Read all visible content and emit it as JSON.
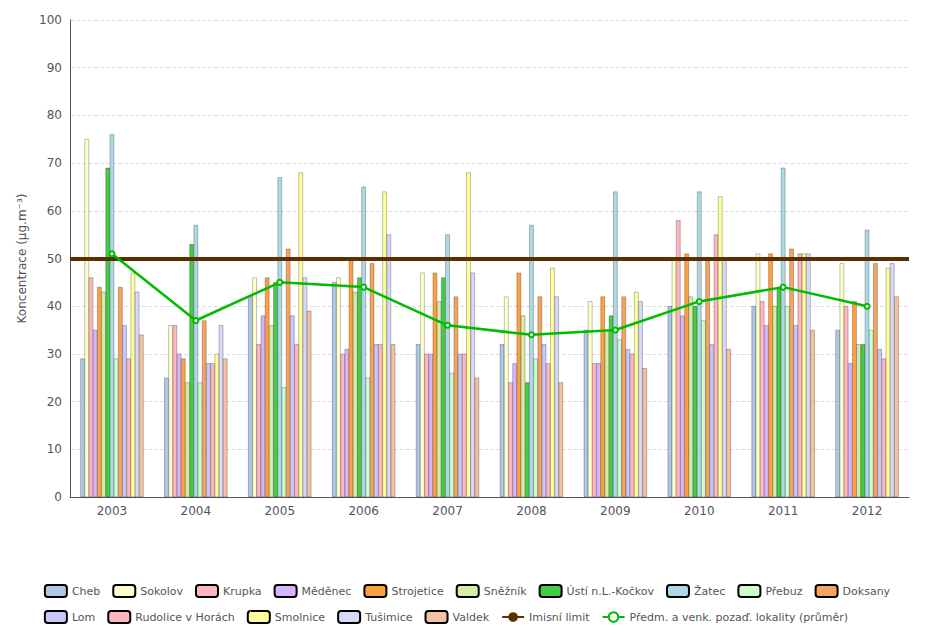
{
  "chart_data": {
    "type": "bar",
    "ylabel": "Koncentrace (µg.m⁻³)",
    "categories": [
      "2003",
      "2004",
      "2005",
      "2006",
      "2007",
      "2008",
      "2009",
      "2010",
      "2011",
      "2012"
    ],
    "series": [
      {
        "name": "Cheb",
        "color": "#aec6e8",
        "values": [
          29,
          25,
          42,
          45,
          32,
          32,
          35,
          40,
          40,
          35
        ]
      },
      {
        "name": "Sokolov",
        "color": "#ffffcc",
        "values": [
          75,
          36,
          46,
          46,
          47,
          42,
          41,
          50,
          51,
          49
        ]
      },
      {
        "name": "Krupka",
        "color": "#ffb6c1",
        "values": [
          46,
          36,
          32,
          30,
          30,
          24,
          28,
          58,
          41,
          40
        ]
      },
      {
        "name": "Měděnec",
        "color": "#d8b4fe",
        "values": [
          35,
          30,
          38,
          31,
          30,
          28,
          28,
          38,
          36,
          28
        ]
      },
      {
        "name": "Strojetice",
        "color": "#ffa040",
        "values": [
          44,
          29,
          46,
          50,
          47,
          47,
          42,
          51,
          51,
          41
        ]
      },
      {
        "name": "Sněžník",
        "color": "#d4edaa",
        "values": [
          43,
          24,
          36,
          43,
          41,
          38,
          35,
          42,
          40,
          32
        ]
      },
      {
        "name": "Ústí n.L.-Kočkov",
        "color": "#44cc44",
        "values": [
          69,
          53,
          45,
          46,
          46,
          24,
          38,
          40,
          44,
          32
        ]
      },
      {
        "name": "Žatec",
        "color": "#add8e6",
        "values": [
          76,
          57,
          67,
          65,
          55,
          57,
          64,
          64,
          69,
          56
        ]
      },
      {
        "name": "Přebuz",
        "color": "#ccffcc",
        "values": [
          29,
          24,
          23,
          25,
          26,
          29,
          33,
          37,
          40,
          35
        ]
      },
      {
        "name": "Doksany",
        "color": "#f4a460",
        "values": [
          44,
          37,
          52,
          49,
          42,
          42,
          42,
          50,
          52,
          49
        ]
      },
      {
        "name": "Lom",
        "color": "#c8c8ff",
        "values": [
          36,
          28,
          38,
          32,
          30,
          32,
          31,
          32,
          36,
          31
        ]
      },
      {
        "name": "Rudolice v Horách",
        "color": "#ffb6c1",
        "values": [
          29,
          28,
          32,
          32,
          30,
          28,
          30,
          55,
          51,
          29
        ]
      },
      {
        "name": "Smolnice",
        "color": "#ffff99",
        "values": [
          47,
          30,
          68,
          64,
          68,
          48,
          43,
          63,
          51,
          48
        ]
      },
      {
        "name": "Tušimice",
        "color": "#d8d8f8",
        "values": [
          43,
          36,
          46,
          55,
          47,
          42,
          41,
          50,
          51,
          49
        ]
      },
      {
        "name": "Valdek",
        "color": "#f4c2a1",
        "values": [
          34,
          29,
          39,
          32,
          25,
          24,
          27,
          31,
          35,
          42
        ]
      },
      {
        "name": "Imisní limit",
        "type": "hline",
        "color": "#5c2e00",
        "value": 50
      },
      {
        "name": "Předm. a venk. pozaď. lokality (průměr)",
        "type": "line",
        "color": "#00bb00",
        "values": [
          51,
          37,
          45,
          44,
          36,
          34,
          35,
          41,
          44,
          40
        ]
      }
    ],
    "ylim": [
      0,
      100
    ],
    "yticks": [
      0,
      10,
      20,
      30,
      40,
      50,
      60,
      70,
      80,
      90,
      100
    ],
    "grid": true,
    "legend": "bottom"
  }
}
